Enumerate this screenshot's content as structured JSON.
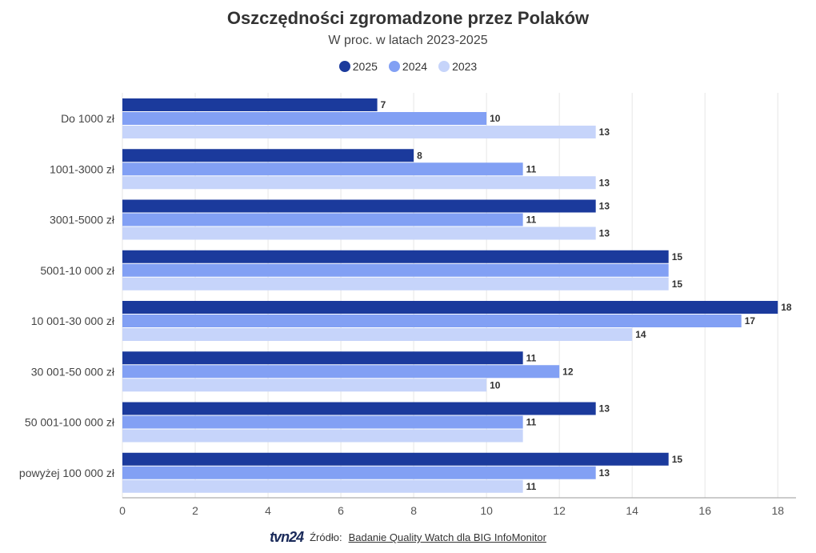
{
  "title": "Oszczędności zgromadzone przez Polaków",
  "subtitle": "W proc. w latach 2023-2025",
  "legend": [
    {
      "label": "2025",
      "color": "#1b3a9c"
    },
    {
      "label": "2024",
      "color": "#82a0f4"
    },
    {
      "label": "2023",
      "color": "#c6d4fa"
    }
  ],
  "chart_data": {
    "type": "bar",
    "orientation": "horizontal",
    "categories": [
      "Do 1000 zł",
      "1001-3000 zł",
      "3001-5000 zł",
      "5001-10 000 zł",
      "10 001-30 000 zł",
      "30 001-50 000 zł",
      "50 001-100 000 zł",
      "powyżej 100 000 zł"
    ],
    "series": [
      {
        "name": "2025",
        "color": "#1b3a9c",
        "values": [
          7,
          8,
          13,
          15,
          18,
          11,
          13,
          15
        ],
        "labels": [
          "7",
          "8",
          "13",
          "15",
          "18",
          "11",
          "13",
          "15"
        ]
      },
      {
        "name": "2024",
        "color": "#82a0f4",
        "values": [
          10,
          11,
          11,
          15,
          17,
          12,
          11,
          13
        ],
        "labels": [
          "10",
          "11",
          "11",
          "",
          "17",
          "12",
          "11",
          "13"
        ]
      },
      {
        "name": "2023",
        "color": "#c6d4fa",
        "values": [
          13,
          13,
          13,
          15,
          14,
          10,
          11,
          11
        ],
        "labels": [
          "13",
          "13",
          "13",
          "15",
          "14",
          "10",
          "",
          "11"
        ]
      }
    ],
    "xlim": [
      0,
      18.5
    ],
    "xticks": [
      0,
      2,
      4,
      6,
      8,
      10,
      12,
      14,
      16,
      18
    ],
    "grid": true,
    "legend_position": "top-center"
  },
  "footer": {
    "logo": "tvn24",
    "source_label": "Źródło:",
    "source_text": "Badanie Quality Watch dla BIG InfoMonitor"
  }
}
